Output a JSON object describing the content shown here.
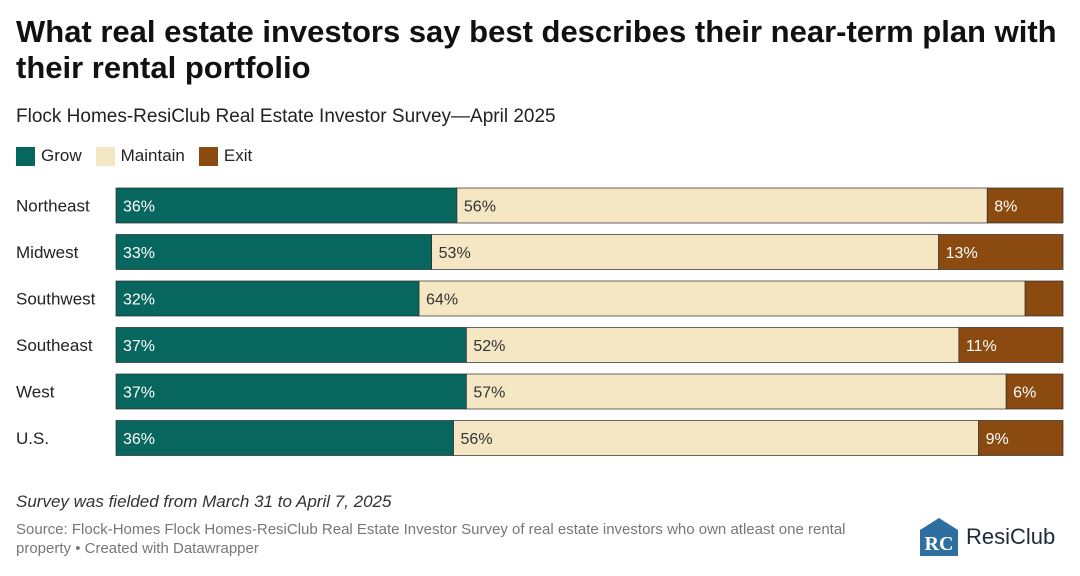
{
  "title": "What real estate investors say best describes their near-term plan with their rental portfolio",
  "subtitle": "Flock Homes-ResiClub Real Estate Investor Survey—April 2025",
  "legend": [
    {
      "label": "Grow",
      "color": "#07665d"
    },
    {
      "label": "Maintain",
      "color": "#f5e6c4"
    },
    {
      "label": "Exit",
      "color": "#8b4b10"
    }
  ],
  "chart_data": {
    "type": "bar",
    "orientation": "horizontal",
    "stacked": true,
    "normalized": true,
    "title": "What real estate investors say best describes their near-term plan with their rental portfolio",
    "subtitle": "Flock Homes-ResiClub Real Estate Investor Survey—April 2025",
    "categories": [
      "Northeast",
      "Midwest",
      "Southwest",
      "Southeast",
      "West",
      "U.S."
    ],
    "series": [
      {
        "name": "Grow",
        "color": "#07665d",
        "text_color": "#ffffff",
        "values": [
          36,
          33,
          32,
          37,
          37,
          36
        ],
        "labels": [
          "36%",
          "33%",
          "32%",
          "37%",
          "37%",
          "36%"
        ]
      },
      {
        "name": "Maintain",
        "color": "#f5e6c4",
        "text_color": "#333333",
        "values": [
          56,
          53,
          64,
          52,
          57,
          56
        ],
        "labels": [
          "56%",
          "53%",
          "64%",
          "52%",
          "57%",
          "56%"
        ]
      },
      {
        "name": "Exit",
        "color": "#8b4b10",
        "text_color": "#ffffff",
        "values": [
          8,
          13,
          4,
          11,
          6,
          9
        ],
        "labels": [
          "8%",
          "13%",
          "",
          "11%",
          "6%",
          "9%"
        ]
      }
    ],
    "xlabel": "",
    "ylabel": "",
    "legend_position": "top-left",
    "grid": false
  },
  "footer": {
    "note": "Survey was fielded from March 31 to April 7, 2025",
    "source": "Source: Flock-Homes Flock Homes-ResiClub Real Estate Investor Survey of real estate investors who own atleast one rental property • Created with Datawrapper"
  },
  "logo": {
    "text": "ResiClub",
    "mark_text": "RC",
    "color": "#2f6f9f"
  }
}
